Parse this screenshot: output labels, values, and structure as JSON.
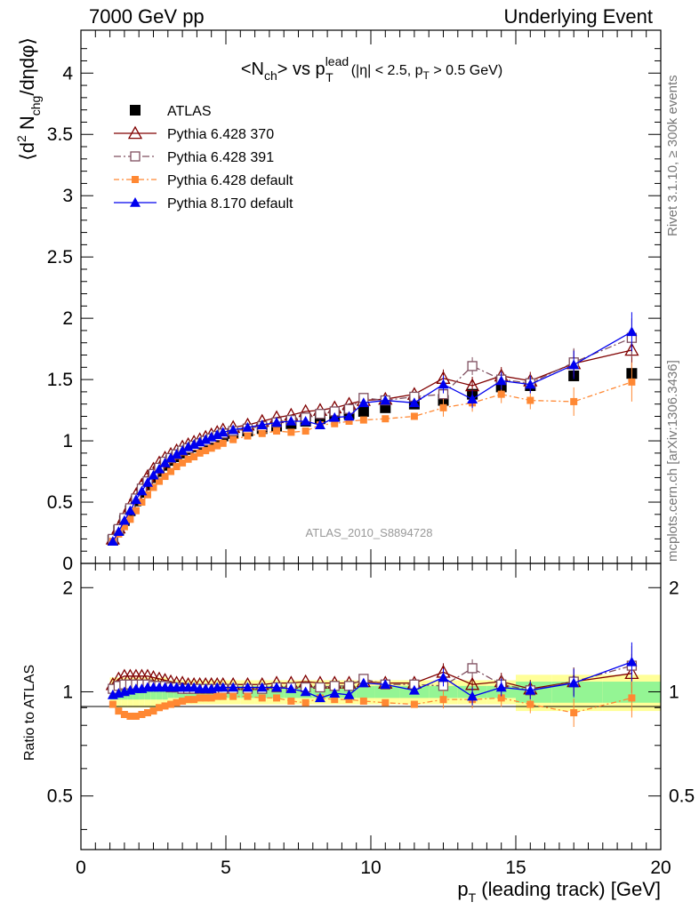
{
  "header": {
    "left": "7000 GeV pp",
    "right": "Underlying Event"
  },
  "side_labels": {
    "rivet": "Rivet 3.1.10, ≥ 300k events",
    "mcplots": "mcplots.cern.ch [arXiv:1306.3436]"
  },
  "colors": {
    "atlas": "#000000",
    "pythia_370": "#800000",
    "pythia_391": "#7f4f5f",
    "pythia_default": "#ff8833",
    "pythia_8": "#0000ee",
    "band_inner": "#94f594",
    "band_outer": "#ffff99"
  },
  "chart_data": [
    {
      "type": "line",
      "panel": "main",
      "title": "<N_ch> vs p_T^lead (|η| < 2.5, p_T > 0.5 GeV)",
      "title_parts": {
        "pre": "<N",
        "ch": "ch",
        "mid": "> vs p",
        "sup": "lead",
        "sub": "T",
        "tail": "(|η| < 2.5, p",
        "tail_sub": "T",
        "tail_end": " > 0.5 GeV)"
      },
      "ylabel": "⟨d² N_chg/dηdφ⟩",
      "ylabel_parts": {
        "a": "⟨d",
        "sup": "2",
        "b": " N",
        "sub": "chg",
        "c": "/dηdφ⟩"
      },
      "watermark": "ATLAS_2010_S8894728",
      "xlim": [
        0,
        20
      ],
      "ylim": [
        0,
        4.35
      ],
      "yticks": [
        0,
        0.5,
        1,
        1.5,
        2,
        2.5,
        3,
        3.5,
        4
      ],
      "ytick_labels": [
        "0",
        "0.5",
        "1",
        "1.5",
        "2",
        "2.5",
        "3",
        "3.5",
        "4"
      ],
      "legend_position": "top-left",
      "x": [
        1.1,
        1.3,
        1.5,
        1.7,
        1.9,
        2.1,
        2.3,
        2.5,
        2.7,
        2.9,
        3.1,
        3.3,
        3.5,
        3.7,
        3.9,
        4.1,
        4.3,
        4.5,
        4.7,
        4.9,
        5.25,
        5.75,
        6.25,
        6.75,
        7.25,
        7.75,
        8.25,
        8.75,
        9.25,
        9.75,
        10.5,
        11.5,
        12.5,
        13.5,
        14.5,
        15.5,
        17.0,
        19.0
      ],
      "series": [
        {
          "name": "ATLAS",
          "marker": "square-filled",
          "values": [
            0.19,
            0.27,
            0.35,
            0.43,
            0.51,
            0.58,
            0.64,
            0.7,
            0.75,
            0.8,
            0.84,
            0.87,
            0.9,
            0.93,
            0.95,
            0.97,
            0.99,
            1.01,
            1.02,
            1.04,
            1.06,
            1.08,
            1.1,
            1.12,
            1.14,
            1.16,
            1.18,
            1.2,
            1.22,
            1.24,
            1.27,
            1.3,
            1.33,
            1.38,
            1.44,
            1.45,
            1.53,
            1.55
          ]
        },
        {
          "name": "Pythia 6.428 370",
          "marker": "triangle-open",
          "dash": "",
          "values": [
            0.2,
            0.29,
            0.38,
            0.47,
            0.56,
            0.64,
            0.71,
            0.77,
            0.82,
            0.86,
            0.89,
            0.92,
            0.95,
            0.97,
            0.99,
            1.01,
            1.03,
            1.05,
            1.07,
            1.09,
            1.11,
            1.13,
            1.16,
            1.19,
            1.21,
            1.24,
            1.25,
            1.27,
            1.3,
            1.33,
            1.34,
            1.38,
            1.51,
            1.45,
            1.53,
            1.49,
            1.63,
            1.74
          ]
        },
        {
          "name": "Pythia 6.428 391",
          "marker": "square-open",
          "dash": "8,3,2,3",
          "values": [
            0.2,
            0.28,
            0.37,
            0.45,
            0.53,
            0.61,
            0.67,
            0.73,
            0.78,
            0.83,
            0.86,
            0.89,
            0.92,
            0.94,
            0.96,
            0.98,
            1.0,
            1.02,
            1.04,
            1.06,
            1.08,
            1.1,
            1.12,
            1.15,
            1.17,
            1.19,
            1.22,
            1.24,
            1.26,
            1.35,
            1.33,
            1.36,
            1.38,
            1.61,
            1.5,
            1.47,
            1.64,
            1.84
          ]
        },
        {
          "name": "Pythia 6.428 default",
          "marker": "square-filled-small",
          "dash": "6,3,2,3",
          "values": [
            0.18,
            0.24,
            0.3,
            0.36,
            0.43,
            0.5,
            0.56,
            0.62,
            0.67,
            0.71,
            0.75,
            0.79,
            0.82,
            0.85,
            0.87,
            0.9,
            0.92,
            0.94,
            0.96,
            0.98,
            1.01,
            1.04,
            1.06,
            1.08,
            1.07,
            1.08,
            1.13,
            1.14,
            1.16,
            1.17,
            1.18,
            1.2,
            1.27,
            1.31,
            1.38,
            1.33,
            1.32,
            1.48
          ]
        },
        {
          "name": "Pythia 8.170 default",
          "marker": "triangle-filled",
          "dash": "",
          "values": [
            0.18,
            0.26,
            0.35,
            0.43,
            0.52,
            0.59,
            0.66,
            0.72,
            0.77,
            0.82,
            0.86,
            0.89,
            0.92,
            0.95,
            0.97,
            0.99,
            1.01,
            1.03,
            1.05,
            1.07,
            1.09,
            1.11,
            1.13,
            1.15,
            1.16,
            1.16,
            1.13,
            1.19,
            1.2,
            1.31,
            1.33,
            1.31,
            1.46,
            1.34,
            1.49,
            1.46,
            1.62,
            1.89
          ]
        }
      ]
    },
    {
      "type": "line",
      "panel": "ratio",
      "ylabel": "Ratio to ATLAS",
      "xlabel": "p_T (leading track) [GeV]",
      "xlabel_parts": {
        "a": "p",
        "sub": "T",
        "b": " (leading track) [GeV]"
      },
      "xlim": [
        0,
        20
      ],
      "ylim": [
        0.35,
        2.35
      ],
      "xticks": [
        0,
        5,
        10,
        15,
        20
      ],
      "xtick_labels": [
        "0",
        "5",
        "10",
        "15",
        "20"
      ],
      "yticks": [
        0.5,
        1,
        2
      ],
      "ytick_labels": [
        "0.5",
        "1",
        "2"
      ],
      "x": [
        1.1,
        1.3,
        1.5,
        1.7,
        1.9,
        2.1,
        2.3,
        2.5,
        2.7,
        2.9,
        3.1,
        3.3,
        3.5,
        3.7,
        3.9,
        4.1,
        4.3,
        4.5,
        4.7,
        4.9,
        5.25,
        5.75,
        6.25,
        6.75,
        7.25,
        7.75,
        8.25,
        8.75,
        9.25,
        9.75,
        10.5,
        11.5,
        12.5,
        13.5,
        14.5,
        15.5,
        17.0,
        19.0
      ],
      "series": [
        {
          "name": "Pythia 6.428 370",
          "marker": "triangle-open",
          "dash": "",
          "values": [
            1.05,
            1.09,
            1.11,
            1.11,
            1.11,
            1.11,
            1.11,
            1.1,
            1.09,
            1.08,
            1.07,
            1.06,
            1.06,
            1.05,
            1.05,
            1.05,
            1.05,
            1.05,
            1.05,
            1.05,
            1.05,
            1.05,
            1.05,
            1.06,
            1.06,
            1.07,
            1.06,
            1.06,
            1.06,
            1.07,
            1.06,
            1.06,
            1.14,
            1.05,
            1.07,
            1.02,
            1.07,
            1.13
          ]
        },
        {
          "name": "Pythia 6.428 391",
          "marker": "square-open",
          "dash": "8,3,2,3",
          "values": [
            1.02,
            1.04,
            1.05,
            1.05,
            1.05,
            1.05,
            1.05,
            1.04,
            1.04,
            1.04,
            1.03,
            1.03,
            1.02,
            1.02,
            1.02,
            1.02,
            1.02,
            1.02,
            1.02,
            1.02,
            1.02,
            1.02,
            1.02,
            1.03,
            1.03,
            1.03,
            1.03,
            1.04,
            1.04,
            1.09,
            1.05,
            1.05,
            1.04,
            1.17,
            1.05,
            1.01,
            1.07,
            1.19
          ]
        },
        {
          "name": "Pythia 6.428 default",
          "marker": "square-filled-small",
          "dash": "6,3,2,3",
          "values": [
            0.92,
            0.88,
            0.86,
            0.85,
            0.85,
            0.86,
            0.87,
            0.88,
            0.9,
            0.91,
            0.92,
            0.93,
            0.94,
            0.95,
            0.95,
            0.96,
            0.96,
            0.96,
            0.97,
            0.97,
            0.97,
            0.97,
            0.96,
            0.96,
            0.94,
            0.93,
            0.96,
            0.95,
            0.95,
            0.94,
            0.93,
            0.92,
            0.95,
            0.95,
            0.96,
            0.92,
            0.87,
            0.96
          ]
        },
        {
          "name": "Pythia 8.170 default",
          "marker": "triangle-filled",
          "dash": "",
          "values": [
            0.98,
            0.99,
            1.0,
            1.01,
            1.02,
            1.02,
            1.03,
            1.03,
            1.03,
            1.03,
            1.03,
            1.03,
            1.03,
            1.03,
            1.03,
            1.02,
            1.02,
            1.02,
            1.03,
            1.03,
            1.03,
            1.03,
            1.03,
            1.03,
            1.02,
            1.0,
            0.96,
            0.99,
            0.98,
            1.06,
            1.05,
            1.01,
            1.1,
            0.97,
            1.03,
            1.01,
            1.06,
            1.22
          ]
        }
      ]
    }
  ]
}
